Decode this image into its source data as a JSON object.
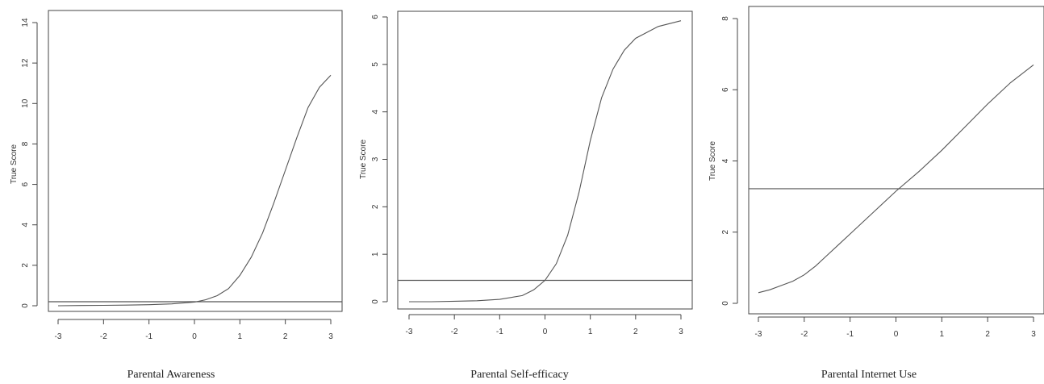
{
  "chart_data": [
    {
      "type": "line",
      "title": "Parental Awareness",
      "ylabel": "True Score",
      "xlim": [
        -3,
        3
      ],
      "ylim": [
        0,
        14
      ],
      "xticks": [
        -3,
        -2,
        -1,
        0,
        1,
        2,
        3
      ],
      "yticks": [
        0,
        2,
        4,
        6,
        8,
        10,
        12,
        14
      ],
      "xtick_labels": [
        "-3",
        "-2",
        "-1",
        "0",
        "1",
        "2",
        "3"
      ],
      "ytick_labels": [
        "0",
        "2",
        "4",
        "6",
        "8",
        "10",
        "12",
        "14"
      ],
      "hline": 0.2,
      "series": [
        {
          "x": [
            -3,
            -2.5,
            -2,
            -1.5,
            -1,
            -0.5,
            0,
            0.25,
            0.5,
            0.75,
            1,
            1.25,
            1.5,
            1.75,
            2,
            2.25,
            2.5,
            2.75,
            3
          ],
          "y": [
            0,
            0.01,
            0.02,
            0.03,
            0.05,
            0.09,
            0.18,
            0.3,
            0.5,
            0.85,
            1.5,
            2.4,
            3.6,
            5.1,
            6.7,
            8.3,
            9.8,
            10.8,
            11.4
          ]
        }
      ]
    },
    {
      "type": "line",
      "title": "Parental Self-efficacy",
      "ylabel": "True Score",
      "xlim": [
        -3,
        3
      ],
      "ylim": [
        0,
        6
      ],
      "xticks": [
        -3,
        -2,
        -1,
        0,
        1,
        2,
        3
      ],
      "yticks": [
        0,
        1,
        2,
        3,
        4,
        5,
        6
      ],
      "xtick_labels": [
        "-3",
        "-2",
        "-1",
        "0",
        "1",
        "2",
        "3"
      ],
      "ytick_labels": [
        "0",
        "1",
        "2",
        "3",
        "4",
        "5",
        "6"
      ],
      "hline": 0.45,
      "series": [
        {
          "x": [
            -3,
            -2.5,
            -2,
            -1.5,
            -1,
            -0.5,
            -0.25,
            0,
            0.25,
            0.5,
            0.75,
            1,
            1.25,
            1.5,
            1.75,
            2,
            2.5,
            3
          ],
          "y": [
            0,
            0,
            0.01,
            0.02,
            0.05,
            0.13,
            0.25,
            0.45,
            0.8,
            1.4,
            2.3,
            3.4,
            4.3,
            4.9,
            5.3,
            5.55,
            5.8,
            5.92
          ]
        }
      ]
    },
    {
      "type": "line",
      "title": "Parental Internet Use",
      "ylabel": "True Score",
      "xlim": [
        -3,
        3
      ],
      "ylim": [
        0,
        8
      ],
      "xticks": [
        -3,
        -2,
        -1,
        0,
        1,
        2,
        3
      ],
      "yticks": [
        0,
        2,
        4,
        6,
        8
      ],
      "xtick_labels": [
        "-3",
        "-2",
        "-1",
        "0",
        "1",
        "2",
        "3"
      ],
      "ytick_labels": [
        "0",
        "2",
        "4",
        "6",
        "8"
      ],
      "hline": 3.22,
      "series": [
        {
          "x": [
            -3,
            -2.75,
            -2.5,
            -2.25,
            -2,
            -1.75,
            -1.5,
            -1.25,
            -1,
            -0.5,
            0,
            0.5,
            1,
            1.5,
            2,
            2.5,
            3
          ],
          "y": [
            0.3,
            0.38,
            0.5,
            0.62,
            0.8,
            1.05,
            1.35,
            1.65,
            1.95,
            2.55,
            3.15,
            3.7,
            4.3,
            4.95,
            5.6,
            6.2,
            6.7
          ]
        }
      ]
    }
  ],
  "colors": {
    "line": "#555555",
    "axis": "#444444",
    "background": "#ffffff"
  }
}
